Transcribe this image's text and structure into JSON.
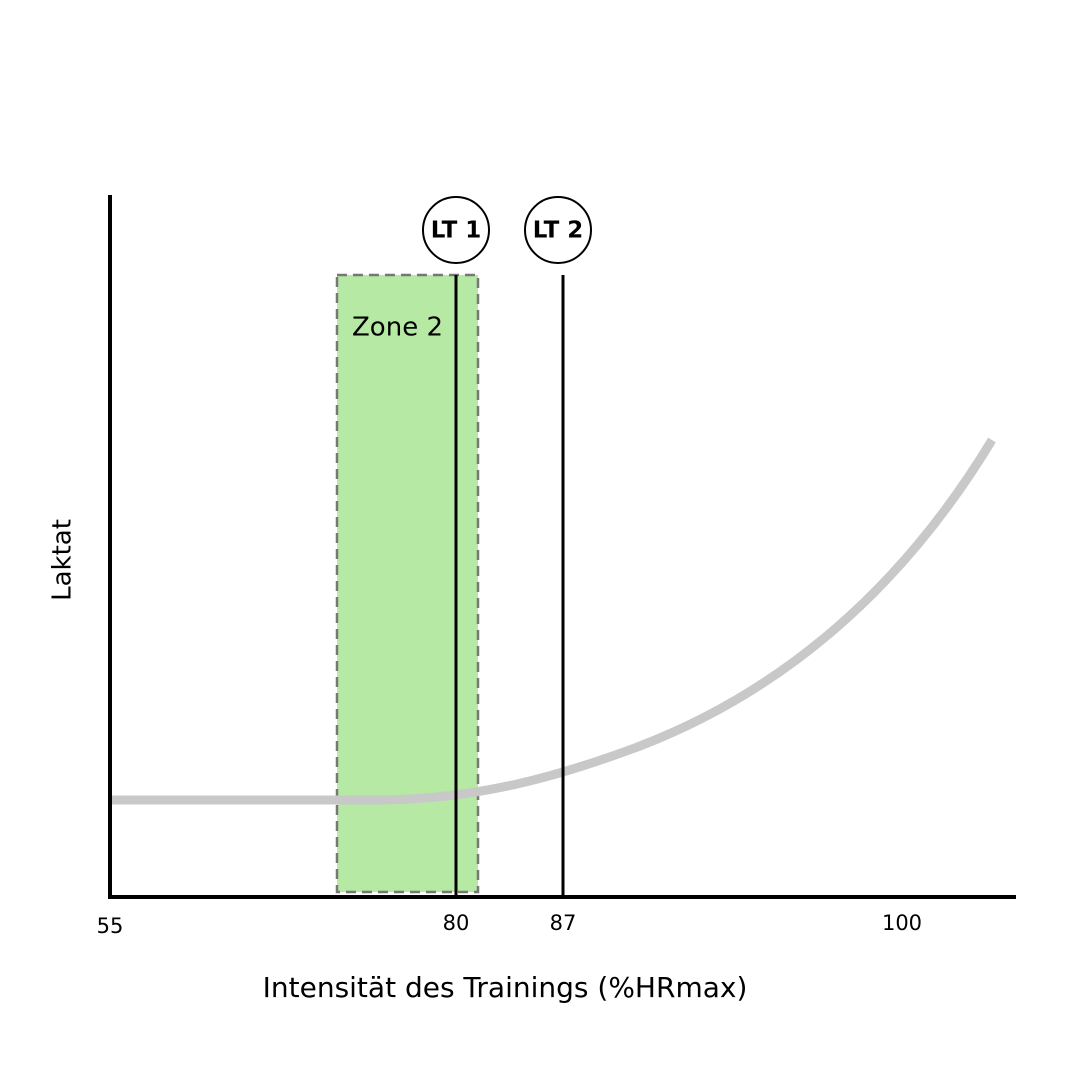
{
  "axes": {
    "x_label": "Intensität des Trainings (%HRmax)",
    "y_label": "Laktat",
    "x_ticks": [
      55,
      80,
      87,
      100
    ]
  },
  "zone": {
    "label": "Zone 2"
  },
  "thresholds": [
    {
      "label": "LT 1"
    },
    {
      "label": "LT 2"
    }
  ]
}
